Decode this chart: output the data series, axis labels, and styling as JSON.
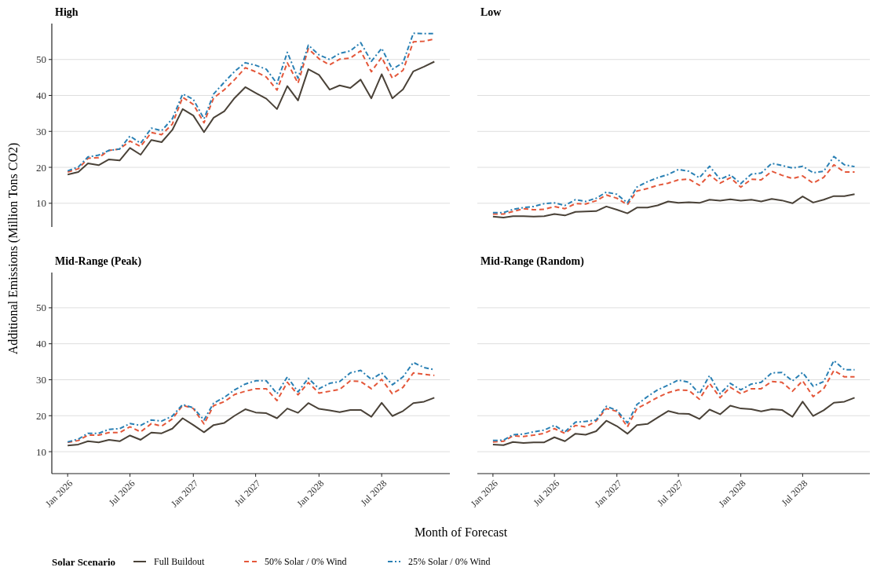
{
  "chart_data": [
    {
      "type": "line",
      "title": "High",
      "ylabel": "Additional Emissions (Million Tons CO2)",
      "legend": "bottom",
      "legend_title": "Solar Scenario",
      "grid": "y",
      "tick_labels": "y",
      "xlim": [
        "2025-11-16",
        "2029-01-15"
      ],
      "ylim": [
        3.4,
        60
      ],
      "yticks": [
        10,
        20,
        30,
        40,
        50
      ],
      "x": [
        "2026-01",
        "2026-02",
        "2026-03",
        "2026-04",
        "2026-05",
        "2026-06",
        "2026-07",
        "2026-08",
        "2026-09",
        "2026-10",
        "2026-11",
        "2026-12",
        "2027-01",
        "2027-02",
        "2027-03",
        "2027-04",
        "2027-05",
        "2027-06",
        "2027-07",
        "2027-08",
        "2027-09",
        "2027-10",
        "2027-11",
        "2027-12",
        "2028-01",
        "2028-02",
        "2028-03",
        "2028-04",
        "2028-05",
        "2028-06",
        "2028-07",
        "2028-08",
        "2028-09",
        "2028-10",
        "2028-11",
        "2028-12"
      ],
      "series": [
        {
          "name": "Full Buildout",
          "color": "#4a4238",
          "line_style": "solid",
          "values": [
            18.0,
            18.7,
            21.1,
            20.6,
            22.2,
            21.9,
            25.4,
            23.5,
            27.6,
            27.0,
            30.4,
            36.2,
            34.4,
            29.8,
            33.8,
            35.6,
            39.3,
            42.3,
            40.7,
            39.1,
            36.2,
            42.6,
            38.6,
            47.3,
            45.7,
            41.6,
            42.8,
            42.1,
            44.4,
            39.2,
            45.9,
            39.2,
            41.7,
            46.7,
            48.0,
            49.4
          ]
        },
        {
          "name": "50% Solar / 0% Wind",
          "color": "#e4573a",
          "line_style": "dashed",
          "values": [
            18.7,
            19.6,
            22.5,
            22.7,
            24.7,
            25.1,
            27.3,
            25.8,
            29.7,
            29.1,
            32.0,
            39.5,
            37.5,
            32.4,
            39.3,
            41.6,
            44.4,
            47.7,
            46.6,
            45.1,
            41.5,
            49.1,
            43.4,
            53.0,
            50.2,
            48.5,
            50.1,
            50.4,
            52.4,
            46.6,
            50.6,
            44.8,
            47.0,
            54.9,
            55.1,
            55.7
          ]
        },
        {
          "name": "25% Solar / 0% Wind",
          "color": "#2a80b4",
          "line_style": "dashdot",
          "values": [
            19.0,
            20.1,
            22.9,
            23.4,
            24.7,
            25.1,
            28.7,
            26.7,
            30.9,
            30.2,
            33.5,
            40.4,
            38.9,
            33.5,
            40.4,
            43.7,
            46.7,
            49.1,
            48.4,
            47.3,
            43.3,
            52.0,
            44.8,
            54.0,
            51.3,
            50.0,
            51.7,
            52.4,
            54.7,
            49.5,
            53.1,
            47.3,
            49.1,
            57.3,
            57.2,
            57.2
          ]
        }
      ]
    },
    {
      "type": "line",
      "title": "Low",
      "grid": "y",
      "tick_labels": false,
      "xlim": [
        "2025-11-16",
        "2029-01-15"
      ],
      "yticks": [
        10,
        20,
        30,
        40,
        50
      ],
      "x": [
        "2026-01",
        "2026-02",
        "2026-03",
        "2026-04",
        "2026-05",
        "2026-06",
        "2026-07",
        "2026-08",
        "2026-09",
        "2026-10",
        "2026-11",
        "2026-12",
        "2027-01",
        "2027-02",
        "2027-03",
        "2027-04",
        "2027-05",
        "2027-06",
        "2027-07",
        "2027-08",
        "2027-09",
        "2027-10",
        "2027-11",
        "2027-12",
        "2028-01",
        "2028-02",
        "2028-03",
        "2028-04",
        "2028-05",
        "2028-06",
        "2028-07",
        "2028-08",
        "2028-09",
        "2028-10",
        "2028-11",
        "2028-12"
      ],
      "series": [
        {
          "color": "#4a4238",
          "line_style": "solid",
          "values": [
            6.3,
            6.0,
            6.4,
            6.4,
            6.3,
            6.4,
            7.0,
            6.6,
            7.6,
            7.7,
            7.8,
            9.1,
            8.2,
            7.2,
            8.8,
            8.8,
            9.4,
            10.5,
            10.1,
            10.3,
            10.1,
            11.0,
            10.7,
            11.1,
            10.7,
            11.0,
            10.5,
            11.2,
            10.8,
            10.0,
            11.9,
            10.2,
            11.0,
            12.0,
            12.0,
            12.5
          ]
        },
        {
          "color": "#e4573a",
          "line_style": "dashed",
          "values": [
            7.0,
            7.0,
            7.7,
            8.5,
            8.2,
            8.3,
            9.1,
            8.5,
            9.9,
            9.8,
            10.7,
            12.3,
            11.4,
            9.6,
            13.4,
            14.1,
            15.0,
            15.6,
            16.5,
            16.7,
            15.0,
            17.9,
            15.6,
            17.1,
            14.5,
            16.7,
            16.5,
            18.9,
            17.8,
            16.9,
            17.6,
            15.6,
            17.2,
            20.7,
            18.7,
            18.7
          ]
        },
        {
          "color": "#2a80b4",
          "line_style": "dashdot",
          "values": [
            7.4,
            7.4,
            8.3,
            8.8,
            9.1,
            9.9,
            10.1,
            9.4,
            11.0,
            10.5,
            11.4,
            13.1,
            12.5,
            10.1,
            14.5,
            16.0,
            17.1,
            18.0,
            19.4,
            18.9,
            17.1,
            20.3,
            16.7,
            17.9,
            15.5,
            18.1,
            18.4,
            21.1,
            20.5,
            19.8,
            20.3,
            18.5,
            18.9,
            23.0,
            20.7,
            20.2
          ]
        }
      ]
    },
    {
      "type": "line",
      "title": "Mid-Range (Peak)",
      "xlabel": "Month of Forecast",
      "grid": "y",
      "xlim": [
        "2025-11-16",
        "2029-01-15"
      ],
      "ylim": [
        3.9,
        59.8
      ],
      "yticks": [
        10,
        20,
        30,
        40,
        50
      ],
      "xticks": [
        {
          "value": "2026-01",
          "label": "Jan 2026"
        },
        {
          "value": "2026-07",
          "label": "Jul 2026"
        },
        {
          "value": "2027-01",
          "label": "Jan 2027"
        },
        {
          "value": "2027-07",
          "label": "Jul 2027"
        },
        {
          "value": "2028-01",
          "label": "Jan 2028"
        },
        {
          "value": "2028-07",
          "label": "Jul 2028"
        }
      ],
      "x": [
        "2026-01",
        "2026-02",
        "2026-03",
        "2026-04",
        "2026-05",
        "2026-06",
        "2026-07",
        "2026-08",
        "2026-09",
        "2026-10",
        "2026-11",
        "2026-12",
        "2027-01",
        "2027-02",
        "2027-03",
        "2027-04",
        "2027-05",
        "2027-06",
        "2027-07",
        "2027-08",
        "2027-09",
        "2027-10",
        "2027-11",
        "2027-12",
        "2028-01",
        "2028-02",
        "2028-03",
        "2028-04",
        "2028-05",
        "2028-06",
        "2028-07",
        "2028-08",
        "2028-09",
        "2028-10",
        "2028-11",
        "2028-12"
      ],
      "series": [
        {
          "color": "#4a4238",
          "line_style": "solid",
          "values": [
            11.7,
            12.0,
            12.9,
            12.6,
            13.3,
            12.9,
            14.5,
            13.3,
            15.3,
            15.1,
            16.4,
            19.3,
            17.4,
            15.4,
            17.4,
            18.0,
            20.0,
            21.8,
            20.9,
            20.7,
            19.3,
            22.0,
            20.8,
            23.5,
            21.9,
            21.5,
            21.0,
            21.6,
            21.6,
            19.7,
            23.6,
            19.9,
            21.3,
            23.5,
            23.9,
            25.0
          ]
        },
        {
          "color": "#e4573a",
          "line_style": "dashed",
          "values": [
            12.6,
            13.1,
            14.6,
            14.6,
            15.3,
            15.3,
            16.9,
            15.5,
            17.8,
            17.1,
            19.1,
            22.9,
            22.0,
            17.7,
            22.8,
            23.9,
            25.9,
            26.8,
            27.5,
            27.5,
            24.2,
            29.3,
            25.8,
            29.2,
            26.3,
            26.8,
            27.3,
            29.7,
            29.5,
            27.5,
            30.1,
            26.1,
            27.9,
            31.9,
            31.5,
            31.2
          ]
        },
        {
          "color": "#2a80b4",
          "line_style": "dashdot",
          "values": [
            12.7,
            13.5,
            15.1,
            15.1,
            16.2,
            16.4,
            17.8,
            17.3,
            18.8,
            18.5,
            19.9,
            23.1,
            22.2,
            18.8,
            23.5,
            25.1,
            27.2,
            28.8,
            29.7,
            29.7,
            26.1,
            30.8,
            26.6,
            30.4,
            27.5,
            29.0,
            29.5,
            31.9,
            32.6,
            30.1,
            31.9,
            28.6,
            30.8,
            34.8,
            33.4,
            32.8
          ]
        }
      ]
    },
    {
      "type": "line",
      "title": "Mid-Range (Random)",
      "grid": "y",
      "tick_labels": "x",
      "xlim": [
        "2025-11-16",
        "2029-01-15"
      ],
      "yticks": [
        10,
        20,
        30,
        40,
        50
      ],
      "xticks": [
        {
          "value": "2026-01",
          "label": "Jan 2026"
        },
        {
          "value": "2026-07",
          "label": "Jul 2026"
        },
        {
          "value": "2027-01",
          "label": "Jan 2027"
        },
        {
          "value": "2027-07",
          "label": "Jul 2027"
        },
        {
          "value": "2028-01",
          "label": "Jan 2028"
        },
        {
          "value": "2028-07",
          "label": "Jul 2028"
        }
      ],
      "x": [
        "2026-01",
        "2026-02",
        "2026-03",
        "2026-04",
        "2026-05",
        "2026-06",
        "2026-07",
        "2026-08",
        "2026-09",
        "2026-10",
        "2026-11",
        "2026-12",
        "2027-01",
        "2027-02",
        "2027-03",
        "2027-04",
        "2027-05",
        "2027-06",
        "2027-07",
        "2027-08",
        "2027-09",
        "2027-10",
        "2027-11",
        "2027-12",
        "2028-01",
        "2028-02",
        "2028-03",
        "2028-04",
        "2028-05",
        "2028-06",
        "2028-07",
        "2028-08",
        "2028-09",
        "2028-10",
        "2028-11",
        "2028-12"
      ],
      "series": [
        {
          "color": "#4a4238",
          "line_style": "solid",
          "values": [
            12.0,
            11.8,
            12.7,
            12.4,
            12.6,
            12.6,
            14.0,
            12.9,
            15.0,
            14.7,
            15.7,
            18.6,
            17.1,
            15.0,
            17.4,
            17.7,
            19.5,
            21.3,
            20.6,
            20.5,
            19.1,
            21.7,
            20.4,
            22.8,
            22.0,
            21.8,
            21.2,
            21.8,
            21.6,
            19.7,
            23.9,
            19.9,
            21.5,
            23.6,
            23.9,
            25.0
          ]
        },
        {
          "color": "#e4573a",
          "line_style": "dashed",
          "values": [
            12.7,
            12.9,
            14.4,
            14.2,
            14.6,
            15.1,
            16.4,
            15.1,
            17.3,
            16.9,
            18.5,
            22.0,
            21.2,
            16.9,
            22.0,
            23.5,
            25.1,
            26.4,
            27.2,
            27.0,
            24.6,
            29.0,
            25.0,
            27.9,
            26.1,
            27.5,
            27.5,
            29.5,
            29.3,
            26.8,
            29.7,
            25.3,
            27.5,
            32.6,
            30.8,
            30.8
          ]
        },
        {
          "color": "#2a80b4",
          "line_style": "dashdot",
          "values": [
            13.1,
            13.2,
            14.7,
            14.9,
            15.5,
            16.0,
            17.3,
            15.5,
            18.2,
            18.4,
            18.8,
            22.6,
            21.5,
            18.0,
            23.1,
            25.3,
            27.2,
            28.5,
            29.9,
            29.3,
            26.1,
            31.2,
            26.1,
            29.0,
            27.2,
            28.8,
            29.3,
            31.9,
            32.0,
            29.7,
            32.0,
            28.2,
            29.5,
            35.3,
            32.8,
            32.8
          ]
        }
      ]
    }
  ]
}
